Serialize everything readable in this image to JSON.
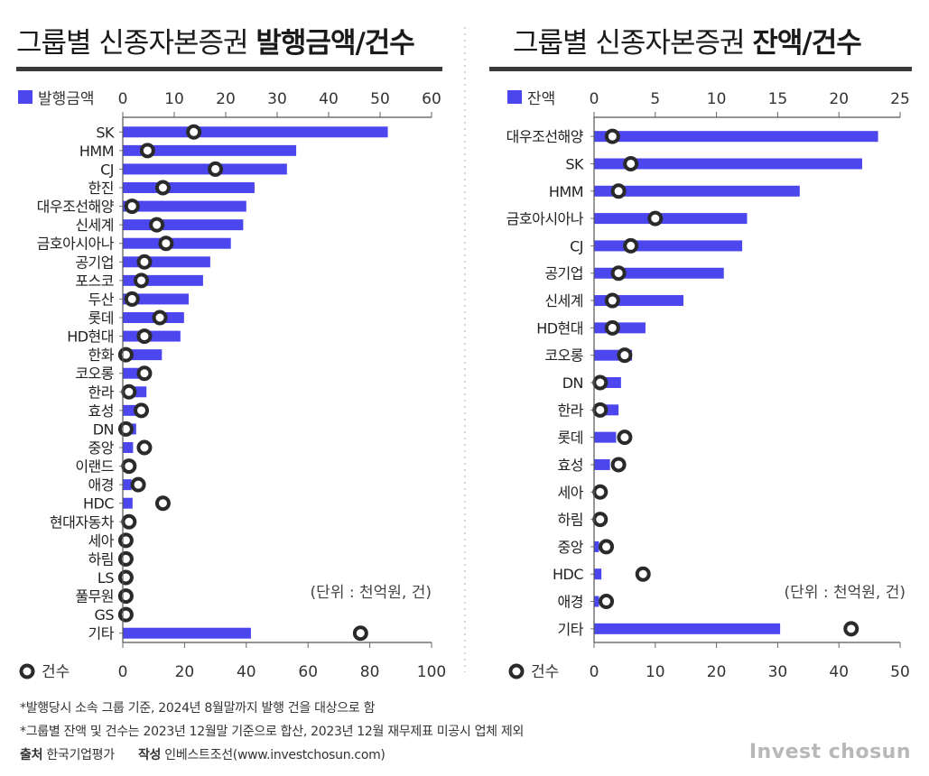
{
  "chart_data": [
    {
      "type": "bar",
      "title_prefix": "그룹별 신종자본증권 ",
      "title_bold": "발행금액/건수",
      "unit_note": "(단위 : 천억원, 건)",
      "categories": [
        "SK",
        "HMM",
        "CJ",
        "한진",
        "대우조선해양",
        "신세계",
        "금호아시아나",
        "공기업",
        "포스코",
        "두산",
        "롯데",
        "HD현대",
        "한화",
        "코오롱",
        "한라",
        "효성",
        "DN",
        "중앙",
        "이랜드",
        "애경",
        "HDC",
        "현대자동차",
        "세아",
        "하림",
        "LS",
        "풀무원",
        "GS",
        "기타"
      ],
      "series": [
        {
          "name": "발행금액",
          "axis": "top",
          "mark": "bar",
          "color": "#4b46ee",
          "values": [
            51.5,
            33.7,
            31.9,
            25.6,
            24.0,
            23.4,
            21.0,
            17.0,
            15.6,
            12.8,
            11.9,
            11.2,
            7.6,
            3.4,
            4.6,
            2.6,
            2.6,
            2.0,
            1.9,
            1.7,
            1.9,
            1.1,
            0,
            0,
            0,
            0,
            0,
            24.9
          ]
        },
        {
          "name": "건수",
          "axis": "bottom",
          "mark": "circle",
          "values": [
            23,
            8,
            30,
            13,
            3,
            11,
            14,
            7,
            6,
            3,
            12,
            7,
            1,
            7,
            2,
            6,
            1,
            7,
            2,
            5,
            13,
            2,
            1,
            1,
            1,
            1,
            1,
            77
          ]
        }
      ],
      "top_axis": {
        "min": 0,
        "max": 60,
        "ticks": [
          0,
          10,
          20,
          30,
          40,
          50,
          60
        ]
      },
      "bottom_axis": {
        "min": 0,
        "max": 100,
        "ticks": [
          0,
          20,
          40,
          60,
          80,
          100
        ]
      }
    },
    {
      "type": "bar",
      "title_prefix": "그룹별 신종자본증권 ",
      "title_bold": "잔액/건수",
      "unit_note": "(단위 : 천억원, 건)",
      "categories": [
        "대우조선해양",
        "SK",
        "HMM",
        "금호아시아나",
        "CJ",
        "공기업",
        "신세계",
        "HD현대",
        "코오롱",
        "DN",
        "한라",
        "롯데",
        "효성",
        "세아",
        "하림",
        "중앙",
        "HDC",
        "애경",
        "기타"
      ],
      "series": [
        {
          "name": "잔액",
          "axis": "top",
          "mark": "bar",
          "color": "#4b46ee",
          "values": [
            23.2,
            21.9,
            16.8,
            12.5,
            12.1,
            10.6,
            7.3,
            4.2,
            3.1,
            2.2,
            2.0,
            1.8,
            1.3,
            0,
            0,
            0.4,
            0.6,
            0.4,
            15.2
          ]
        },
        {
          "name": "건수",
          "axis": "bottom",
          "mark": "circle",
          "values": [
            3,
            6,
            4,
            10,
            6,
            4,
            3,
            3,
            5,
            1,
            1,
            5,
            4,
            1,
            1,
            2,
            8,
            2,
            42
          ]
        }
      ],
      "top_axis": {
        "min": 0,
        "max": 25,
        "ticks": [
          0,
          5,
          10,
          15,
          20,
          25
        ]
      },
      "bottom_axis": {
        "min": 0,
        "max": 50,
        "ticks": [
          0,
          10,
          20,
          30,
          40,
          50
        ]
      }
    }
  ],
  "notes": {
    "note1": "*발행당시 소속 그룹 기준, 2024년 8월말까지 발행 건을 대상으로 함",
    "note2": "*그룹별 잔액 및 건수는 2023년 12월말 기준으로 합산, 2023년 12월 재무제표 미공시 업체 제외",
    "source_label": "출처",
    "source_value": "한국기업평가",
    "author_label": "작성",
    "author_value": "인베스트조선(www.investchosun.com)"
  },
  "logo": "Invest chosun"
}
